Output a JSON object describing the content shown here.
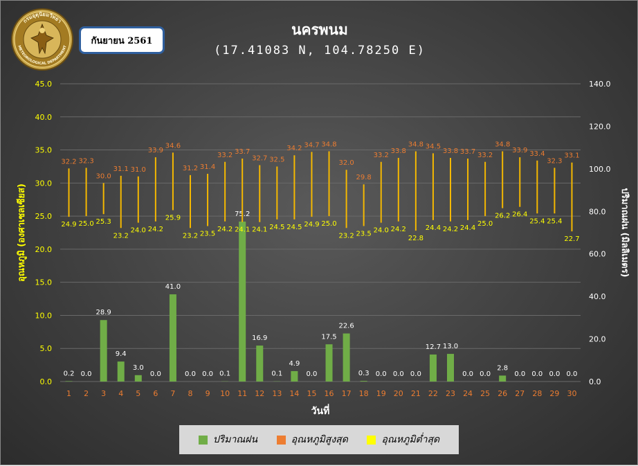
{
  "header": {
    "title": "นครพนม",
    "coordinates": "(17.41083 N, 104.78250 E)",
    "month_label": "กันยายน 2561"
  },
  "logo": {
    "top_text": "กรมอุตุนิยมวิทยา",
    "bottom_text": "METEOROLOGICAL DEPARTMENT"
  },
  "colors": {
    "rain": "#70ad47",
    "tmax": "#ed7d31",
    "tmin": "#ffff00",
    "tick_left": "#ffff00",
    "tick_x": "#ed7d31"
  },
  "chart_data": {
    "type": "bar",
    "xlabel": "วันที่",
    "ylabel_left": "อุณหภูมิ (องศาเซลเซียส)",
    "ylabel_right": "ปริมาณฝน (มิลลิเมตร)",
    "x": [
      1,
      2,
      3,
      4,
      5,
      6,
      7,
      8,
      9,
      10,
      11,
      12,
      13,
      14,
      15,
      16,
      17,
      18,
      19,
      20,
      21,
      22,
      23,
      24,
      25,
      26,
      27,
      28,
      29,
      30
    ],
    "ylim_left": [
      0,
      45
    ],
    "ylim_right": [
      0,
      140
    ],
    "yticks_left": [
      "0.0",
      "5.0",
      "10.0",
      "15.0",
      "20.0",
      "25.0",
      "30.0",
      "35.0",
      "40.0",
      "45.0"
    ],
    "yticks_right": [
      "0.0",
      "20.0",
      "40.0",
      "60.0",
      "80.0",
      "100.0",
      "120.0",
      "140.0"
    ],
    "series": [
      {
        "name": "ปริมาณฝน",
        "axis": "right",
        "kind": "bar",
        "values": [
          0.2,
          0.0,
          28.9,
          9.4,
          3.0,
          0.0,
          41.0,
          0.0,
          0.0,
          0.1,
          75.2,
          16.9,
          0.1,
          4.9,
          0.0,
          17.5,
          22.6,
          0.3,
          0.0,
          0.0,
          0.0,
          12.7,
          13.0,
          0.0,
          0.0,
          2.8,
          0.0,
          0.0,
          0.0,
          0.0
        ]
      },
      {
        "name": "อุณหภูมิสูงสุด",
        "axis": "left",
        "kind": "range-top",
        "values": [
          32.2,
          32.3,
          30.0,
          31.1,
          31.0,
          33.9,
          34.6,
          31.2,
          31.4,
          33.2,
          33.7,
          32.7,
          32.5,
          34.2,
          34.7,
          34.8,
          32.0,
          29.8,
          33.2,
          33.8,
          34.8,
          34.5,
          33.8,
          33.7,
          33.2,
          34.8,
          33.9,
          33.4,
          32.3,
          33.1
        ]
      },
      {
        "name": "อุณหภูมิต่ำสุด",
        "axis": "left",
        "kind": "range-bottom",
        "values": [
          24.9,
          25.0,
          25.3,
          23.2,
          24.0,
          24.2,
          25.9,
          23.2,
          23.5,
          24.2,
          24.1,
          24.1,
          24.5,
          24.5,
          24.9,
          25.0,
          23.2,
          23.5,
          24.0,
          24.2,
          22.8,
          24.4,
          24.2,
          24.4,
          25.0,
          26.2,
          26.4,
          25.4,
          25.4,
          22.7
        ]
      }
    ],
    "legend_position": "bottom"
  }
}
